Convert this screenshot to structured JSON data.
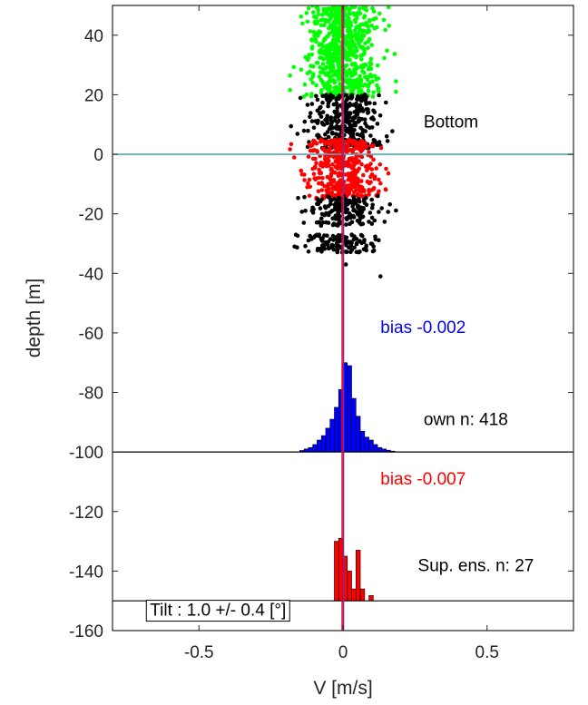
{
  "chart_data": {
    "type": "scatter",
    "xlabel": "V [m/s]",
    "ylabel": "depth [m]",
    "xlim": [
      -0.8,
      0.8
    ],
    "ylim": [
      -160,
      50
    ],
    "xticks": [
      -0.5,
      0,
      0.5
    ],
    "xtick_labels": [
      "-0.5",
      "0",
      "0.5"
    ],
    "yticks": [
      40,
      20,
      0,
      -20,
      -40,
      -60,
      -80,
      -100,
      -120,
      -140,
      -160
    ],
    "ytick_labels": [
      "40",
      "20",
      "0",
      "-20",
      "-40",
      "-60",
      "-80",
      "-100",
      "-120",
      "-140",
      "-160"
    ],
    "grid": false,
    "colors": {
      "green": "#00ff00",
      "black": "#000000",
      "red": "#ff0000",
      "blue": "#0000ff",
      "bottom_line": "#4eaabe",
      "mean_line": "#7030a0"
    },
    "scatter_bands": [
      {
        "color": "green",
        "depth_min": 19,
        "depth_max": 50,
        "center": 0.0,
        "spread": 0.08,
        "count": 700
      },
      {
        "color": "black",
        "depth_min": 2,
        "depth_max": 20,
        "center": 0.0,
        "spread": 0.085,
        "count": 320
      },
      {
        "color": "red",
        "depth_min": -15,
        "depth_max": 5,
        "center": 0.0,
        "spread": 0.08,
        "count": 420
      },
      {
        "color": "black",
        "depth_min": -24,
        "depth_max": -14,
        "center": 0.0,
        "spread": 0.08,
        "count": 170
      },
      {
        "color": "black",
        "depth_min": -33,
        "depth_max": -27,
        "center": 0.0,
        "spread": 0.085,
        "count": 120
      }
    ],
    "outlier_points": [
      {
        "v": 0.13,
        "depth": -41
      },
      {
        "v": 0.01,
        "depth": -37
      }
    ],
    "bottom_depth": 0,
    "vertical_lines": [
      {
        "v": 0.0,
        "color": "red"
      },
      {
        "v": 0.0,
        "color": "mean_line"
      }
    ],
    "histograms": [
      {
        "color": "blue",
        "baseline": -100,
        "bin_edges": [
          -0.15,
          -0.135,
          -0.12,
          -0.105,
          -0.09,
          -0.075,
          -0.06,
          -0.045,
          -0.03,
          -0.015,
          0.0,
          0.015,
          0.03,
          0.045,
          0.06,
          0.075,
          0.09,
          0.105,
          0.12,
          0.135,
          0.15,
          0.165,
          0.18
        ],
        "heights": [
          0.5,
          1,
          1.5,
          2.5,
          4,
          5.5,
          8,
          11,
          15,
          21,
          30,
          29,
          18,
          12,
          7,
          5,
          4,
          2.5,
          1.5,
          1,
          0.6,
          0.3
        ]
      },
      {
        "color": "red",
        "baseline": -150,
        "bin_edges": [
          -0.03,
          -0.015,
          0.0,
          0.015,
          0.03,
          0.045,
          0.06,
          0.075,
          0.09,
          0.105
        ],
        "heights": [
          20,
          21,
          15,
          10,
          4,
          17,
          4,
          0,
          1.8
        ]
      }
    ],
    "histogram_baselines": [
      -100,
      -150
    ],
    "annotations": [
      {
        "text": "Bottom",
        "v": 0.28,
        "depth": 9,
        "color": "black"
      },
      {
        "text": "bias -0.002",
        "v": 0.13,
        "depth": -60,
        "color": "blue"
      },
      {
        "text": "own n: 418",
        "v": 0.28,
        "depth": -91,
        "color": "black"
      },
      {
        "text": "bias -0.007",
        "v": 0.13,
        "depth": -111,
        "color": "red"
      },
      {
        "text": "Sup. ens. n: 27",
        "v": 0.26,
        "depth": -140,
        "color": "black"
      },
      {
        "text": "Tilt : 1.0 +/- 0.4 [°]",
        "v": -0.67,
        "depth": -155,
        "color": "black",
        "boxed": true
      }
    ]
  }
}
